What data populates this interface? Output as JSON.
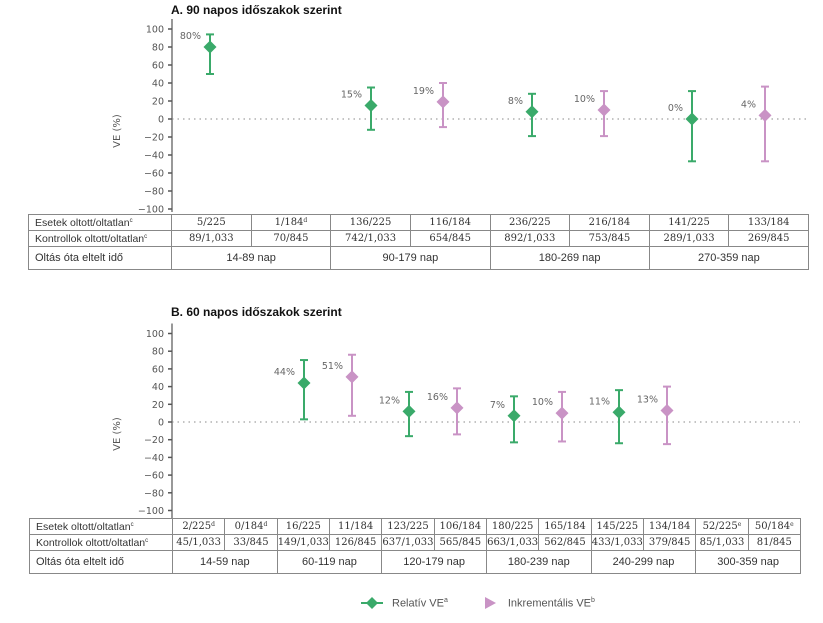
{
  "colors": {
    "relative": "#3aaa6a",
    "incremental": "#c993c5",
    "axis": "#555555"
  },
  "chart_data": [
    {
      "type": "scatter",
      "title": "A. 90 napos időszakok szerint",
      "ylabel": "VE (%)",
      "ylim": [
        -100,
        100
      ],
      "yticks": [
        "100",
        "80",
        "60",
        "40",
        "20",
        "0",
        "−20",
        "−40",
        "−60",
        "−80",
        "−100"
      ],
      "reference_line": 0,
      "series": [
        {
          "name": "Relatív VE",
          "points": [
            {
              "period": "14-89 nap",
              "value": 80,
              "lower": 50,
              "upper": 94,
              "label": "80%"
            },
            {
              "period": "90-179 nap",
              "value": 15,
              "lower": -12,
              "upper": 35,
              "label": "15%"
            },
            {
              "period": "180-269 nap",
              "value": 8,
              "lower": -19,
              "upper": 28,
              "label": "8%"
            },
            {
              "period": "270-359 nap",
              "value": 0,
              "lower": -47,
              "upper": 31,
              "label": "0%"
            }
          ]
        },
        {
          "name": "Inkrementális VE",
          "points": [
            {
              "period": "90-179 nap",
              "value": 19,
              "lower": -9,
              "upper": 40,
              "label": "19%"
            },
            {
              "period": "180-269 nap",
              "value": 10,
              "lower": -19,
              "upper": 31,
              "label": "10%"
            },
            {
              "period": "270-359 nap",
              "value": 4,
              "lower": -47,
              "upper": 36,
              "label": "4%"
            }
          ]
        }
      ],
      "table": {
        "row_labels": [
          "Esetek oltott/oltatlan",
          "Kontrollok oltott/oltatlan",
          "Oltás óta eltelt idő"
        ],
        "row_label_sup": [
          "c",
          "c",
          ""
        ],
        "cases": [
          {
            "text": "5/225",
            "sup": ""
          },
          {
            "text": "1/184",
            "sup": "d"
          },
          {
            "text": "136/225",
            "sup": ""
          },
          {
            "text": "116/184",
            "sup": ""
          },
          {
            "text": "236/225",
            "sup": ""
          },
          {
            "text": "216/184",
            "sup": ""
          },
          {
            "text": "141/225",
            "sup": ""
          },
          {
            "text": "133/184",
            "sup": ""
          }
        ],
        "controls": [
          "89/1,033",
          "70/845",
          "742/1,033",
          "654/845",
          "892/1,033",
          "753/845",
          "289/1,033",
          "269/845"
        ],
        "periods": [
          "14-89 nap",
          "90-179 nap",
          "180-269 nap",
          "270-359 nap"
        ]
      }
    },
    {
      "type": "scatter",
      "title": "B. 60 napos időszakok szerint",
      "ylabel": "VE (%)",
      "ylim": [
        -100,
        100
      ],
      "yticks": [
        "100",
        "80",
        "60",
        "40",
        "20",
        "0",
        "−20",
        "−40",
        "−60",
        "−80",
        "−100"
      ],
      "reference_line": 0,
      "series": [
        {
          "name": "Relatív VE",
          "points": [
            {
              "period": "60-119 nap",
              "value": 44,
              "lower": 3,
              "upper": 70,
              "label": "44%"
            },
            {
              "period": "120-179 nap",
              "value": 12,
              "lower": -16,
              "upper": 34,
              "label": "12%"
            },
            {
              "period": "180-239 nap",
              "value": 7,
              "lower": -23,
              "upper": 29,
              "label": "7%"
            },
            {
              "period": "240-299 nap",
              "value": 11,
              "lower": -24,
              "upper": 36,
              "label": "11%"
            }
          ]
        },
        {
          "name": "Inkrementális VE",
          "points": [
            {
              "period": "60-119 nap",
              "value": 51,
              "lower": 7,
              "upper": 76,
              "label": "51%"
            },
            {
              "period": "120-179 nap",
              "value": 16,
              "lower": -14,
              "upper": 38,
              "label": "16%"
            },
            {
              "period": "180-239 nap",
              "value": 10,
              "lower": -22,
              "upper": 34,
              "label": "10%"
            },
            {
              "period": "240-299 nap",
              "value": 13,
              "lower": -25,
              "upper": 40,
              "label": "13%"
            }
          ]
        }
      ],
      "table": {
        "row_labels": [
          "Esetek oltott/oltatlan",
          "Kontrollok oltott/oltatlan",
          "Oltás óta eltelt idő"
        ],
        "row_label_sup": [
          "c",
          "c",
          ""
        ],
        "cases": [
          {
            "text": "2/225",
            "sup": "d"
          },
          {
            "text": "0/184",
            "sup": "d"
          },
          {
            "text": "16/225",
            "sup": ""
          },
          {
            "text": "11/184",
            "sup": ""
          },
          {
            "text": "123/225",
            "sup": ""
          },
          {
            "text": "106/184",
            "sup": ""
          },
          {
            "text": "180/225",
            "sup": ""
          },
          {
            "text": "165/184",
            "sup": ""
          },
          {
            "text": "145/225",
            "sup": ""
          },
          {
            "text": "134/184",
            "sup": ""
          },
          {
            "text": "52/225",
            "sup": "e"
          },
          {
            "text": "50/184",
            "sup": "e"
          }
        ],
        "controls": [
          "45/1,033",
          "33/845",
          "149/1,033",
          "126/845",
          "637/1,033",
          "565/845",
          "663/1,033",
          "562/845",
          "433/1,033",
          "379/845",
          "85/1,033",
          "81/845"
        ],
        "periods": [
          "14-59 nap",
          "60-119 nap",
          "120-179 nap",
          "180-239 nap",
          "240-299 nap",
          "300-359 nap"
        ]
      }
    }
  ],
  "legend": [
    {
      "label": "Relatív VE",
      "sup": "a",
      "marker": "diamond"
    },
    {
      "label": "Inkrementális VE",
      "sup": "b",
      "marker": "triangle"
    }
  ]
}
